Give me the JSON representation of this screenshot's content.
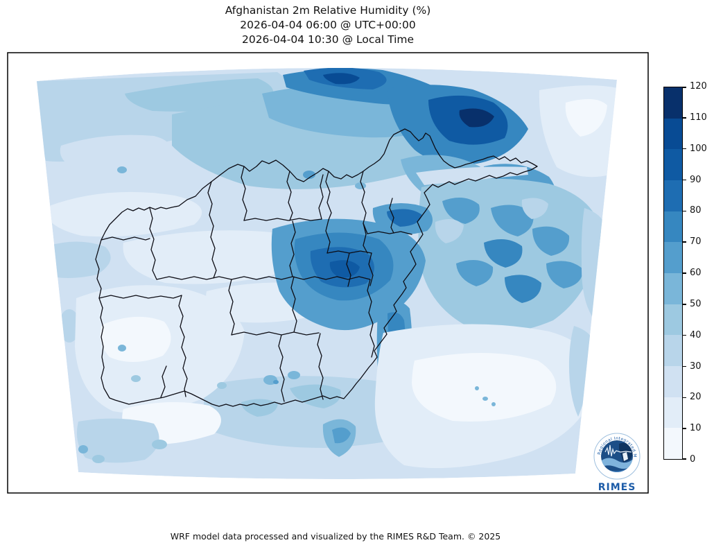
{
  "figure": {
    "title_line1": "Afghanistan 2m Relative Humidity (%)",
    "title_line2": "2026-04-04 06:00 @ UTC+00:00",
    "title_line3": "2026-04-04 10:30 @ Local Time",
    "credit": "WRF model data processed and visualized by the RIMES R&D Team. © 2025"
  },
  "logo": {
    "name": "RIMES",
    "ring_text": "Regional Integrated Multi-Hazard Early Warning System"
  },
  "chart_data": {
    "type": "filled_contour_map",
    "title": "Afghanistan 2m Relative Humidity (%)",
    "variable": "2m relative humidity",
    "units": "%",
    "region": "Afghanistan and surrounding terrain (curvilinear WRF domain)",
    "model": "WRF",
    "valid_time_utc": "2026-04-04 06:00 @ UTC+00:00",
    "valid_time_local": "2026-04-04 10:30 @ Local Time",
    "colormap": "Blues",
    "overlay": "province boundaries (black)",
    "colorbar": {
      "min": 0,
      "max": 120,
      "step": 10,
      "orientation": "vertical",
      "position": "right",
      "ticks": [
        0,
        10,
        20,
        30,
        40,
        50,
        60,
        70,
        80,
        90,
        100,
        110,
        120
      ],
      "segment_colors": [
        "#f3f8fd",
        "#e2edf8",
        "#d0e1f2",
        "#b8d5ea",
        "#9dc9e1",
        "#7ab6d9",
        "#549ecd",
        "#3687c0",
        "#1e6db2",
        "#0f5aa3",
        "#084b94",
        "#08306b"
      ]
    },
    "estimated_values_pct": {
      "northwest_plains": "30-50",
      "north_central_hindu_kush_ridge": "70-110",
      "northeast_pamir_ridges": "60-100",
      "far_northeast_corner_valleys": "5-20",
      "central_highlands_core": "70-95",
      "kabul_eastern_cluster": "60-85",
      "eastern_border_mountains": "50-80",
      "southwest_desert": "10-30",
      "south_central_band": "30-50",
      "southeast_lowlands": "10-25"
    }
  }
}
